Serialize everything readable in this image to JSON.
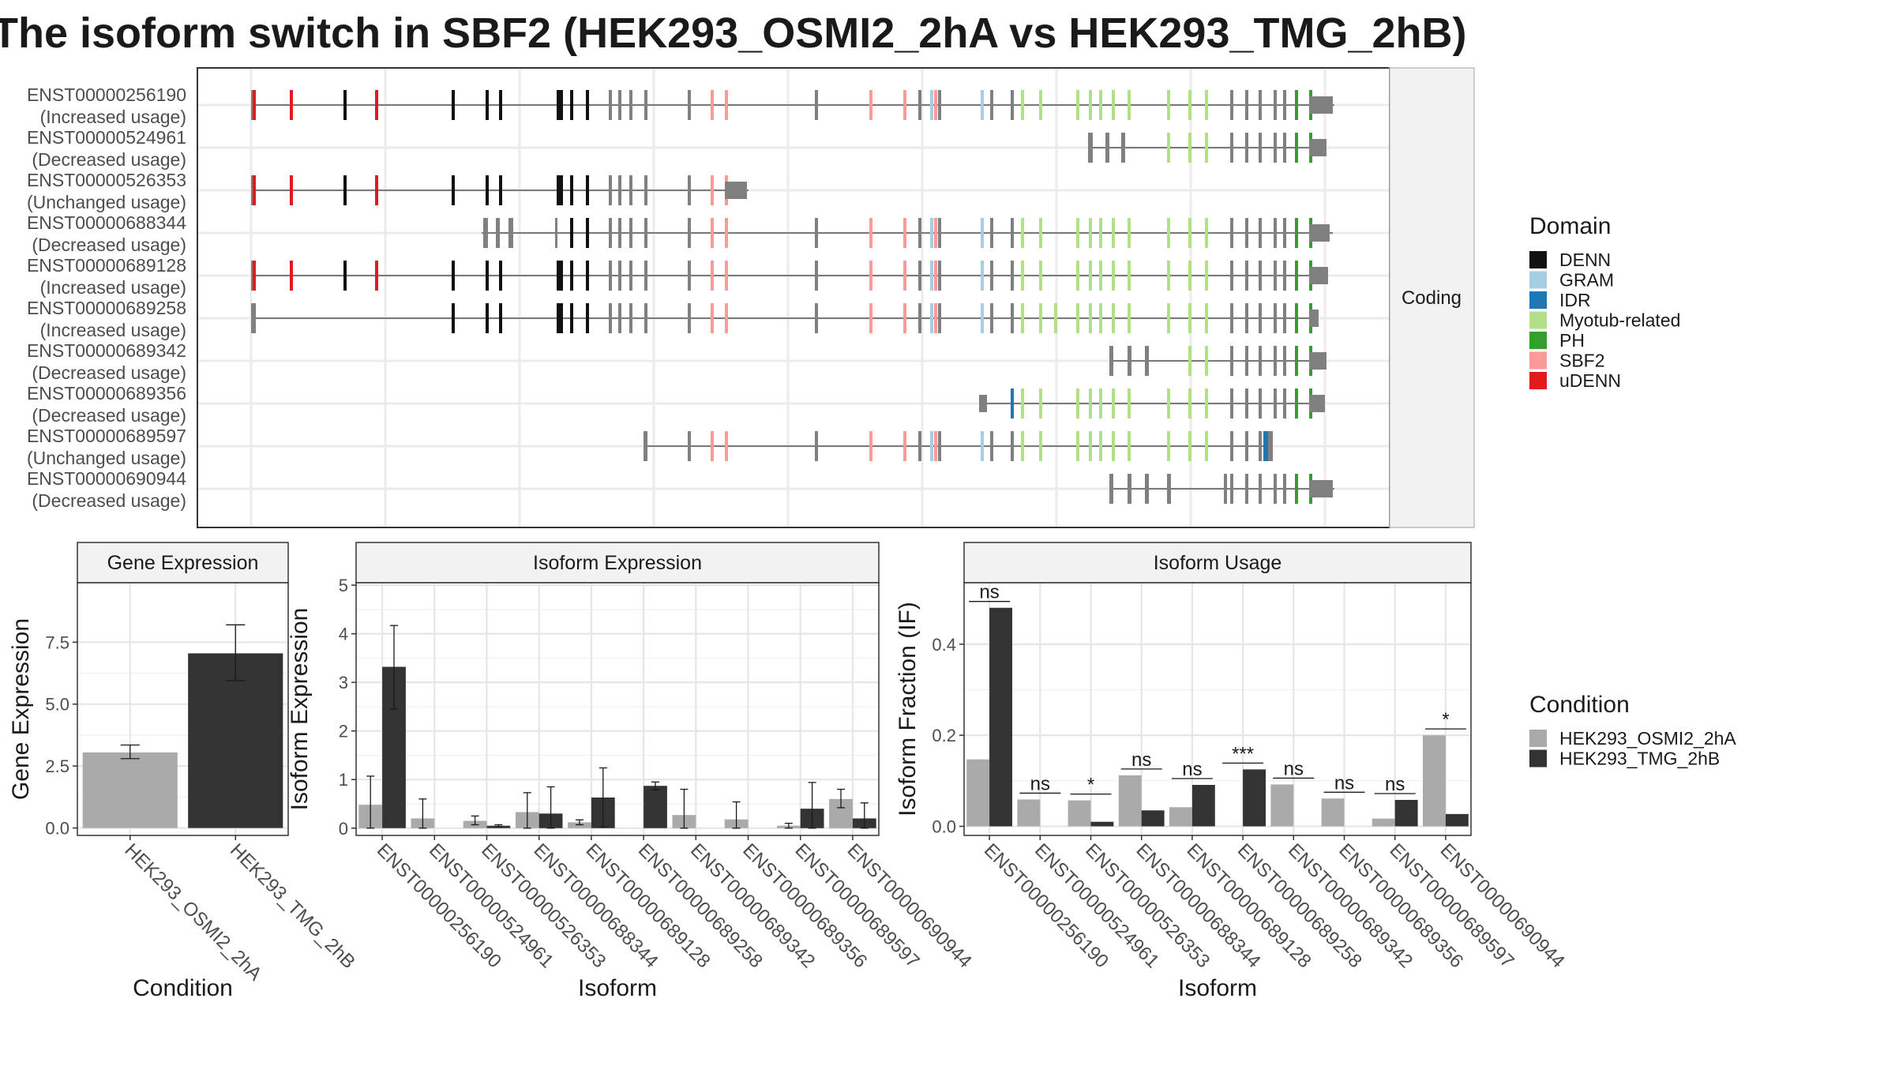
{
  "title": "The isoform switch in SBF2 (HEK293_OSMI2_2hA vs HEK293_TMG_2hB)",
  "structure_panel": {
    "strip_label": "Coding",
    "isoforms": [
      {
        "id": "ENST00000256190",
        "usage": "(Increased usage)"
      },
      {
        "id": "ENST00000524961",
        "usage": "(Decreased usage)"
      },
      {
        "id": "ENST00000526353",
        "usage": "(Unchanged usage)"
      },
      {
        "id": "ENST00000688344",
        "usage": "(Decreased usage)"
      },
      {
        "id": "ENST00000689128",
        "usage": "(Increased usage)"
      },
      {
        "id": "ENST00000689258",
        "usage": "(Increased usage)"
      },
      {
        "id": "ENST00000689342",
        "usage": "(Decreased usage)"
      },
      {
        "id": "ENST00000689356",
        "usage": "(Decreased usage)"
      },
      {
        "id": "ENST00000689597",
        "usage": "(Unchanged usage)"
      },
      {
        "id": "ENST00000690944",
        "usage": "(Decreased usage)"
      }
    ]
  },
  "domain_legend": {
    "title": "Domain",
    "items": [
      {
        "label": "DENN",
        "color": "#111111"
      },
      {
        "label": "GRAM",
        "color": "#a6cee3"
      },
      {
        "label": "IDR",
        "color": "#1f78b4"
      },
      {
        "label": "Myotub-related",
        "color": "#b2df8a"
      },
      {
        "label": "PH",
        "color": "#33a02c"
      },
      {
        "label": "SBF2",
        "color": "#fb9a99"
      },
      {
        "label": "uDENN",
        "color": "#e31a1c"
      }
    ]
  },
  "condition_legend": {
    "title": "Condition",
    "items": [
      {
        "label": "HEK293_OSMI2_2hA",
        "color": "#aaaaaa"
      },
      {
        "label": "HEK293_TMG_2hB",
        "color": "#333333"
      }
    ]
  },
  "chart_data": [
    {
      "type": "bar",
      "title": "Gene Expression",
      "xlabel": "Condition",
      "ylabel": "Gene Expression",
      "categories": [
        "HEK293_OSMI2_2hA",
        "HEK293_TMG_2hB"
      ],
      "values": [
        3.05,
        7.05
      ],
      "error_low": [
        2.8,
        5.95
      ],
      "error_high": [
        3.35,
        8.2
      ],
      "colors": [
        "#aaaaaa",
        "#333333"
      ],
      "ylim": [
        -0.3,
        9.9
      ],
      "yticks": [
        0.0,
        2.5,
        5.0,
        7.5
      ],
      "ytick_labels": [
        "0.0",
        "2.5",
        "5.0",
        "7.5"
      ],
      "grid": true
    },
    {
      "type": "bar",
      "title": "Isoform Expression",
      "xlabel": "Isoform",
      "ylabel": "Isoform Expression",
      "categories": [
        "ENST00000256190",
        "ENST00000524961",
        "ENST00000526353",
        "ENST00000688344",
        "ENST00000689128",
        "ENST00000689258",
        "ENST00000689342",
        "ENST00000689356",
        "ENST00000689597",
        "ENST00000690944"
      ],
      "series": [
        {
          "name": "HEK293_OSMI2_2hA",
          "color": "#aaaaaa",
          "values": [
            0.48,
            0.2,
            0.15,
            0.33,
            0.12,
            0.0,
            0.27,
            0.18,
            0.05,
            0.6
          ],
          "error_low": [
            0.0,
            0.0,
            0.07,
            0.0,
            0.07,
            0.0,
            0.0,
            0.0,
            0.0,
            0.42
          ],
          "error_high": [
            1.07,
            0.6,
            0.25,
            0.73,
            0.17,
            0.0,
            0.8,
            0.54,
            0.1,
            0.8
          ]
        },
        {
          "name": "HEK293_TMG_2hB",
          "color": "#333333",
          "values": [
            3.32,
            0.0,
            0.05,
            0.3,
            0.63,
            0.87,
            0.0,
            0.0,
            0.4,
            0.2
          ],
          "error_low": [
            2.45,
            0.0,
            0.03,
            0.0,
            0.02,
            0.79,
            0.0,
            0.0,
            0.0,
            0.0
          ],
          "error_high": [
            4.17,
            0.0,
            0.07,
            0.85,
            1.24,
            0.95,
            0.0,
            0.0,
            0.94,
            0.52
          ]
        }
      ],
      "ylim": [
        -0.15,
        5.05
      ],
      "yticks": [
        0,
        1,
        2,
        3,
        4,
        5
      ],
      "ytick_labels": [
        "0",
        "1",
        "2",
        "3",
        "4",
        "5"
      ],
      "grid": true
    },
    {
      "type": "bar",
      "title": "Isoform Usage",
      "xlabel": "Isoform",
      "ylabel": "Isoform Fraction (IF)",
      "categories": [
        "ENST00000256190",
        "ENST00000524961",
        "ENST00000526353",
        "ENST00000688344",
        "ENST00000689128",
        "ENST00000689258",
        "ENST00000689342",
        "ENST00000689356",
        "ENST00000689597",
        "ENST00000690944"
      ],
      "series": [
        {
          "name": "HEK293_OSMI2_2hA",
          "color": "#aaaaaa",
          "values": [
            0.147,
            0.059,
            0.057,
            0.112,
            0.042,
            0.0,
            0.092,
            0.061,
            0.017,
            0.2
          ]
        },
        {
          "name": "HEK293_TMG_2hB",
          "color": "#333333",
          "values": [
            0.48,
            0.0,
            0.01,
            0.035,
            0.091,
            0.125,
            0.0,
            0.0,
            0.058,
            0.027
          ]
        }
      ],
      "significance": [
        "ns",
        "ns",
        "*",
        "ns",
        "ns",
        "***",
        "ns",
        "ns",
        "ns",
        "*"
      ],
      "ylim": [
        -0.02,
        0.535
      ],
      "yticks": [
        0.0,
        0.2,
        0.4
      ],
      "ytick_labels": [
        "0.0",
        "0.2",
        "0.4"
      ],
      "grid": true
    }
  ]
}
